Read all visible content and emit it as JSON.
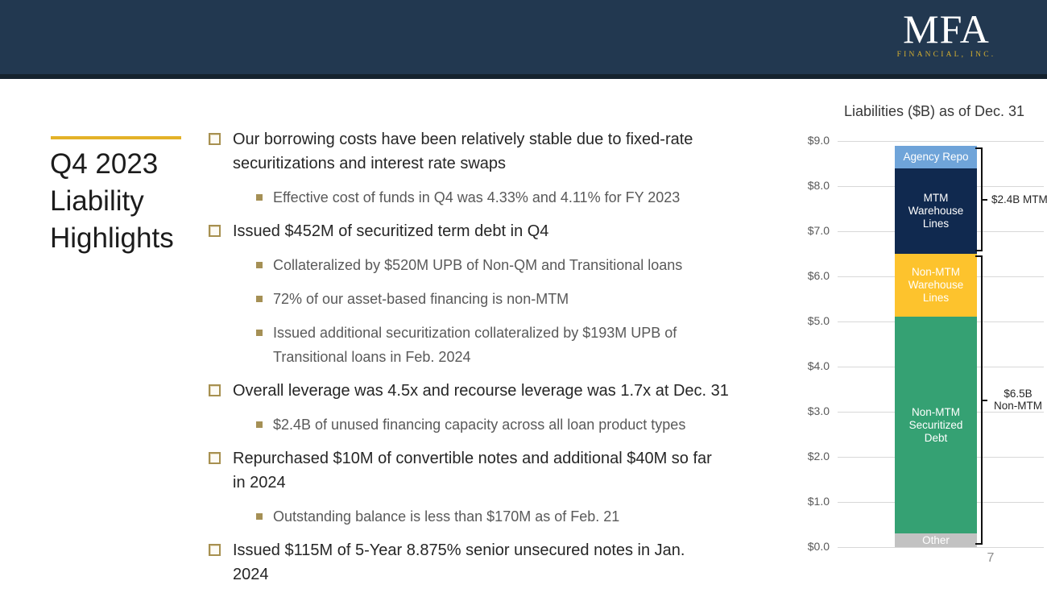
{
  "header": {
    "logo_main": "MFA",
    "logo_sub": "FINANCIAL, INC."
  },
  "title": "Q4 2023\nLiability\nHighlights",
  "bullets": [
    {
      "level": 1,
      "text": "Our borrowing costs have been relatively stable due to fixed-rate\nsecuritizations and interest rate swaps"
    },
    {
      "level": 2,
      "text": "Effective cost of funds in Q4 was 4.33% and 4.11% for FY 2023"
    },
    {
      "level": 1,
      "text": "Issued $452M of securitized term debt in Q4"
    },
    {
      "level": 2,
      "text": "Collateralized by $520M UPB of Non-QM and Transitional loans"
    },
    {
      "level": 2,
      "text": "72% of our asset-based financing is non-MTM"
    },
    {
      "level": 2,
      "text": "Issued additional securitization collateralized by $193M UPB of\nTransitional loans in Feb. 2024"
    },
    {
      "level": 1,
      "text": "Overall leverage was 4.5x and recourse leverage was 1.7x at Dec. 31"
    },
    {
      "level": 2,
      "text": "$2.4B of unused financing capacity across all loan product types"
    },
    {
      "level": 1,
      "text": "Repurchased $10M of convertible notes and additional $40M so far\nin 2024"
    },
    {
      "level": 2,
      "text": "Outstanding balance is less than $170M as of Feb. 21"
    },
    {
      "level": 1,
      "text": "Issued $115M of 5-Year 8.875% senior unsecured notes in Jan.\n2024"
    }
  ],
  "chart_data": {
    "type": "bar",
    "title": "Liabilities ($B) as of Dec. 31",
    "categories": [
      "Dec. 31"
    ],
    "stacked": true,
    "ylim": [
      0,
      9
    ],
    "yticks": [
      "$9.0",
      "$8.0",
      "$7.0",
      "$6.0",
      "$5.0",
      "$4.0",
      "$3.0",
      "$2.0",
      "$1.0",
      "$0.0"
    ],
    "grid": true,
    "series": [
      {
        "name": "Other",
        "value": 0.3,
        "color": "#c2c2c2"
      },
      {
        "name": "Non-MTM Securitized Debt",
        "value": 4.8,
        "color": "#35a173"
      },
      {
        "name": "Non-MTM Warehouse Lines",
        "value": 1.4,
        "color": "#fdc32d"
      },
      {
        "name": "MTM Warehouse Lines",
        "value": 1.9,
        "color": "#10294f"
      },
      {
        "name": "Agency Repo",
        "value": 0.5,
        "color": "#6fa4d9"
      }
    ],
    "annotations": [
      {
        "text": "$2.4B MTM",
        "covers": [
          "MTM Warehouse Lines",
          "Agency Repo"
        ],
        "total": 2.4
      },
      {
        "text": "$6.5B\nNon-MTM",
        "covers": [
          "Other",
          "Non-MTM Securitized Debt",
          "Non-MTM Warehouse Lines"
        ],
        "total": 6.5
      }
    ]
  },
  "page_number": "7",
  "colors": {
    "header_bg": "#223850",
    "accent_gold": "#e4b228",
    "logo_gold": "#d6b031"
  }
}
